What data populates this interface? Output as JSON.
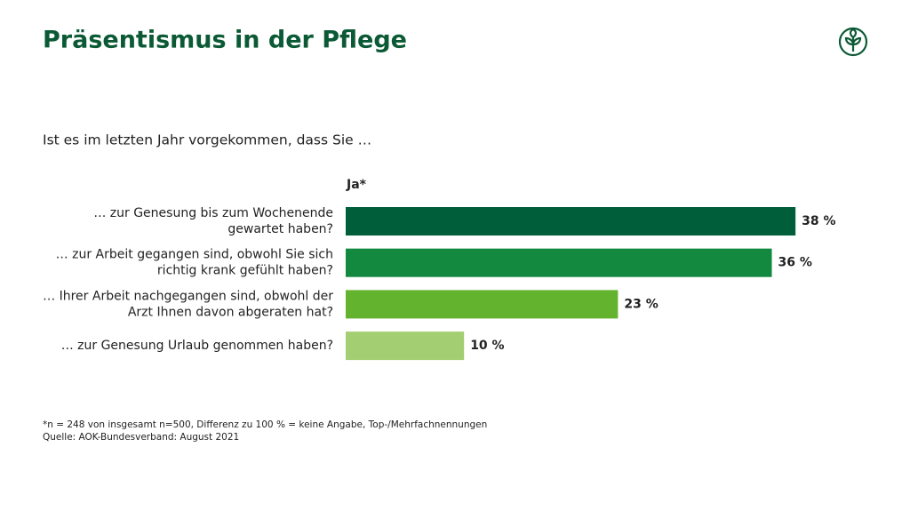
{
  "chart_data": {
    "type": "bar",
    "title": "Präsentismus in der Pflege",
    "subtitle": "Ist es im letzten Jahr vorgekommen, dass Sie …",
    "value_header": "Ja*",
    "categories": [
      [
        "… zur Genesung bis zum Wochenende",
        "gewartet haben?"
      ],
      [
        "… zur Arbeit gegangen sind, obwohl Sie sich",
        "richtig krank gefühlt haben?"
      ],
      [
        "… Ihrer Arbeit nachgegangen sind, obwohl der",
        "Arzt Ihnen davon abgeraten hat?"
      ],
      [
        "… zur Genesung Urlaub genommen haben?"
      ]
    ],
    "values": [
      38,
      36,
      23,
      10
    ],
    "value_labels": [
      "38 %",
      "36 %",
      "23 %",
      "10 %"
    ],
    "colors": [
      "#005e3a",
      "#12893f",
      "#63b32e",
      "#a3cf72"
    ],
    "footnote": "*n = 248 von insgesamt n=500, Differenz zu 100 % = keine Angabe, Top-/Mehrfachnennungen",
    "source": "Quelle: AOK-Bundesverband: August 2021"
  }
}
